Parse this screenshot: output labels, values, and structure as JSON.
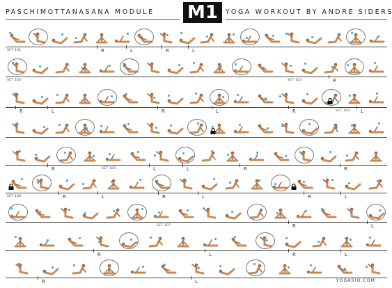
{
  "header": {
    "left_title": "PASCHIMOTTANASANA MODULE",
    "badge": "M1",
    "right_title": "YOGA WORKOUT BY ANDRE SIDERSKI"
  },
  "sets": [
    {
      "label": "SET 101"
    },
    {
      "label": "SET 102"
    },
    {
      "label": "SET 103"
    },
    {
      "label": "SET 104"
    },
    {
      "label": "SET 105"
    },
    {
      "label": "SET 106"
    },
    {
      "label": "SET 107"
    }
  ],
  "side_marks": {
    "right": "R",
    "left": "L"
  },
  "icons": {
    "figure": "yoga-pose-figure-icon",
    "lock": "lock-icon",
    "highlight": "circled-pose-icon"
  },
  "colors": {
    "skin": "#c98a55",
    "skin_dark": "#a9693a",
    "dot": "#29a8e0",
    "line": "#444444"
  },
  "footer": {
    "site": "YOGASIO.COM"
  }
}
